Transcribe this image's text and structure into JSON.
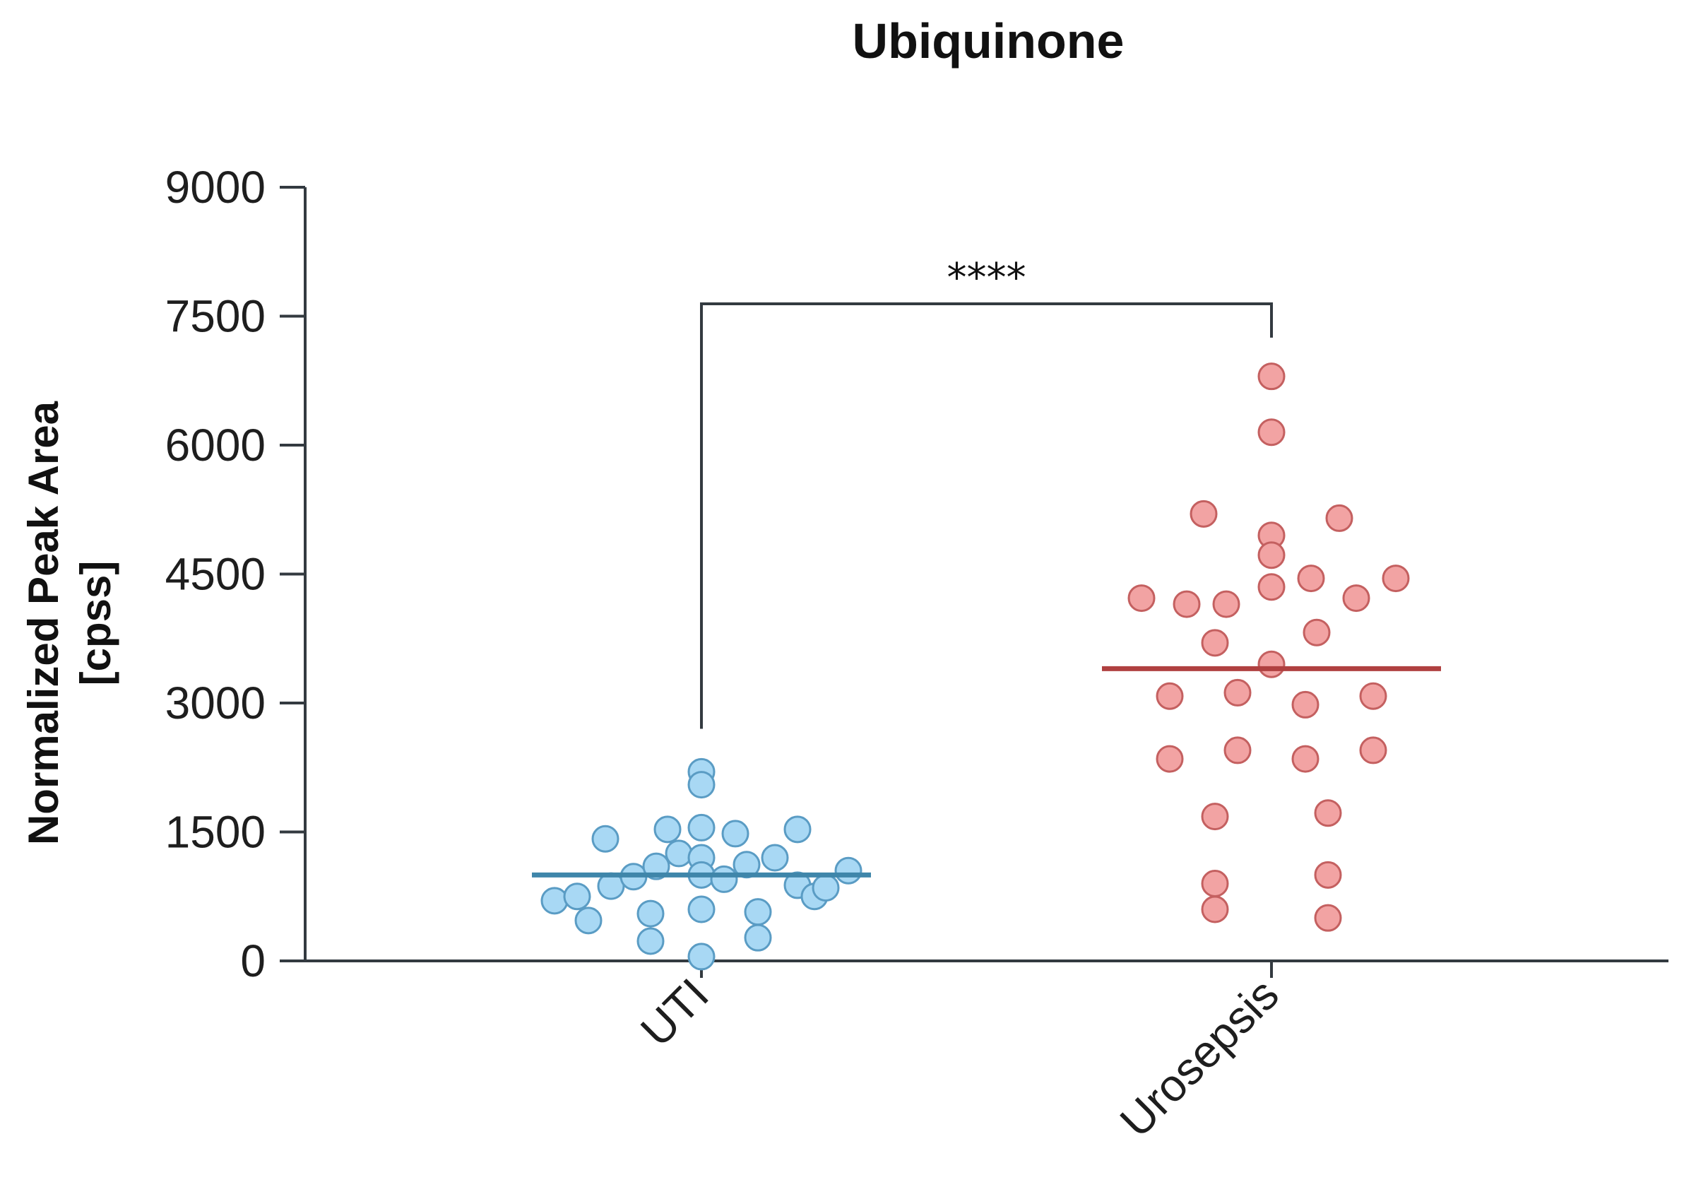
{
  "chart_data": {
    "type": "scatter",
    "title": "Ubiquinone",
    "ylabel_lines": [
      "Normalized Peak Area",
      "[cpss]"
    ],
    "xlabel": "",
    "ylim": [
      0,
      9000
    ],
    "yticks": [
      0,
      1500,
      3000,
      4500,
      6000,
      7500,
      9000
    ],
    "ytick_labels": [
      "0",
      "1500",
      "3000",
      "4500",
      "6000",
      "7500",
      "9000"
    ],
    "categories": [
      "UTI",
      "Urosepsis"
    ],
    "grid": false,
    "legend": "none",
    "significance": "****",
    "series": [
      {
        "category": "UTI",
        "color": "#a8d8f4",
        "edge_color": "#5a9cc4",
        "median_color": "#3f86aa",
        "median": 1000,
        "points": [
          {
            "offset": -0.26,
            "value": 700
          },
          {
            "offset": -0.22,
            "value": 750
          },
          {
            "offset": -0.2,
            "value": 470
          },
          {
            "offset": -0.16,
            "value": 870
          },
          {
            "offset": -0.17,
            "value": 1420
          },
          {
            "offset": -0.12,
            "value": 980
          },
          {
            "offset": -0.09,
            "value": 550
          },
          {
            "offset": -0.09,
            "value": 230
          },
          {
            "offset": -0.08,
            "value": 1100
          },
          {
            "offset": -0.06,
            "value": 1530
          },
          {
            "offset": -0.04,
            "value": 1250
          },
          {
            "offset": 0.0,
            "value": 2200
          },
          {
            "offset": 0.0,
            "value": 2050
          },
          {
            "offset": 0.0,
            "value": 1550
          },
          {
            "offset": 0.0,
            "value": 1200
          },
          {
            "offset": 0.0,
            "value": 1000
          },
          {
            "offset": 0.0,
            "value": 600
          },
          {
            "offset": 0.0,
            "value": 50
          },
          {
            "offset": 0.04,
            "value": 950
          },
          {
            "offset": 0.06,
            "value": 1480
          },
          {
            "offset": 0.08,
            "value": 1120
          },
          {
            "offset": 0.1,
            "value": 570
          },
          {
            "offset": 0.1,
            "value": 270
          },
          {
            "offset": 0.13,
            "value": 1200
          },
          {
            "offset": 0.17,
            "value": 1530
          },
          {
            "offset": 0.17,
            "value": 880
          },
          {
            "offset": 0.2,
            "value": 750
          },
          {
            "offset": 0.22,
            "value": 850
          },
          {
            "offset": 0.26,
            "value": 1050
          }
        ]
      },
      {
        "category": "Urosepsis",
        "color": "#f2a3a3",
        "edge_color": "#c46060",
        "median_color": "#b04040",
        "median": 3400,
        "points": [
          {
            "offset": 0.0,
            "value": 6800
          },
          {
            "offset": 0.0,
            "value": 6150
          },
          {
            "offset": -0.12,
            "value": 5200
          },
          {
            "offset": 0.0,
            "value": 4950
          },
          {
            "offset": 0.0,
            "value": 4720
          },
          {
            "offset": 0.12,
            "value": 5150
          },
          {
            "offset": -0.23,
            "value": 4220
          },
          {
            "offset": -0.15,
            "value": 4150
          },
          {
            "offset": -0.08,
            "value": 4150
          },
          {
            "offset": 0.0,
            "value": 4350
          },
          {
            "offset": 0.07,
            "value": 4450
          },
          {
            "offset": 0.15,
            "value": 4220
          },
          {
            "offset": 0.22,
            "value": 4450
          },
          {
            "offset": -0.1,
            "value": 3700
          },
          {
            "offset": 0.08,
            "value": 3820
          },
          {
            "offset": 0.0,
            "value": 3450
          },
          {
            "offset": -0.18,
            "value": 3080
          },
          {
            "offset": -0.06,
            "value": 3120
          },
          {
            "offset": 0.06,
            "value": 2980
          },
          {
            "offset": 0.18,
            "value": 3080
          },
          {
            "offset": -0.18,
            "value": 2350
          },
          {
            "offset": -0.06,
            "value": 2450
          },
          {
            "offset": 0.06,
            "value": 2350
          },
          {
            "offset": 0.18,
            "value": 2450
          },
          {
            "offset": -0.1,
            "value": 1680
          },
          {
            "offset": 0.1,
            "value": 1720
          },
          {
            "offset": -0.1,
            "value": 900
          },
          {
            "offset": 0.1,
            "value": 1000
          },
          {
            "offset": -0.1,
            "value": 600
          },
          {
            "offset": 0.1,
            "value": 500
          }
        ]
      }
    ]
  }
}
